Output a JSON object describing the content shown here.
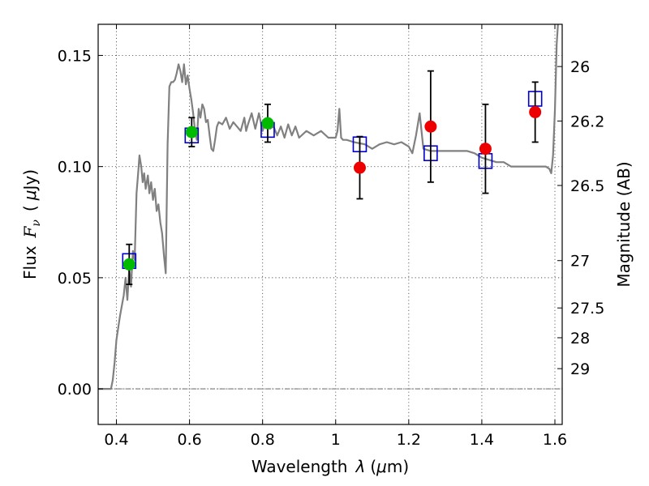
{
  "chart_data": {
    "type": "scatter",
    "xlabel_prefix": "Wavelength",
    "xlabel_symbol": "λ",
    "xlabel_unit_prefix": "(",
    "xlabel_unit_symbol": "μ",
    "xlabel_unit_suffix": "m)",
    "ylabel_prefix": "Flux",
    "ylabel_symbol": "F",
    "ylabel_subscript": "ν",
    "ylabel_unit_open": "(",
    "ylabel_unit_symbol": "μ",
    "ylabel_unit_close": "Jy)",
    "y2label": "Magnitude (AB)",
    "xlim": [
      0.35,
      1.62
    ],
    "ylim": [
      -0.016,
      0.164
    ],
    "grid": true,
    "xticks": [
      0.4,
      0.6,
      0.8,
      1.0,
      1.2,
      1.4,
      1.6
    ],
    "xtick_labels": [
      "0.4",
      "0.6",
      "0.8",
      "1",
      "1.2",
      "1.4",
      "1.6"
    ],
    "yticks": [
      0.0,
      0.05,
      0.1,
      0.15
    ],
    "ytick_labels": [
      "0.00",
      "0.05",
      "0.10",
      "0.15"
    ],
    "mag_ticks": [
      {
        "label": "26",
        "flux": 0.145
      },
      {
        "label": "26.2",
        "flux": 0.1205
      },
      {
        "label": "26.5",
        "flux": 0.0915
      },
      {
        "label": "27",
        "flux": 0.0577
      },
      {
        "label": "27.5",
        "flux": 0.0364
      },
      {
        "label": "28",
        "flux": 0.023
      },
      {
        "label": "29",
        "flux": 0.0091
      }
    ],
    "colors": {
      "model": "#808080",
      "green": "#00bb00",
      "red": "#ee0000",
      "box": "#0000cc",
      "errorbar": "#000000",
      "zero_line": "#555555"
    },
    "series": [
      {
        "points": [
          {
            "x": 0.435,
            "y": 0.056,
            "err": 0.009
          },
          {
            "x": 0.606,
            "y": 0.1155,
            "err": 0.0065
          },
          {
            "x": 0.814,
            "y": 0.1195,
            "err": 0.0085
          }
        ]
      },
      {
        "points": [
          {
            "x": 1.066,
            "y": 0.0995,
            "err": 0.014
          },
          {
            "x": 1.26,
            "y": 0.118,
            "err": 0.025
          },
          {
            "x": 1.41,
            "y": 0.108,
            "err": 0.02
          },
          {
            "x": 1.546,
            "y": 0.1245,
            "err": 0.0135
          }
        ]
      },
      {
        "points": [
          {
            "x": 0.435,
            "y": 0.0575
          },
          {
            "x": 0.606,
            "y": 0.114
          },
          {
            "x": 0.814,
            "y": 0.1165
          },
          {
            "x": 1.066,
            "y": 0.11
          },
          {
            "x": 1.26,
            "y": 0.106
          },
          {
            "x": 1.41,
            "y": 0.1025
          },
          {
            "x": 1.546,
            "y": 0.1305
          }
        ]
      },
      {
        "points": [
          [
            0.35,
            0.0
          ],
          [
            0.385,
            0.0
          ],
          [
            0.39,
            0.004
          ],
          [
            0.395,
            0.012
          ],
          [
            0.4,
            0.022
          ],
          [
            0.41,
            0.033
          ],
          [
            0.42,
            0.042
          ],
          [
            0.425,
            0.05
          ],
          [
            0.43,
            0.04
          ],
          [
            0.435,
            0.054
          ],
          [
            0.44,
            0.046
          ],
          [
            0.445,
            0.062
          ],
          [
            0.45,
            0.058
          ],
          [
            0.455,
            0.088
          ],
          [
            0.46,
            0.098
          ],
          [
            0.463,
            0.105
          ],
          [
            0.468,
            0.1
          ],
          [
            0.472,
            0.093
          ],
          [
            0.476,
            0.097
          ],
          [
            0.48,
            0.09
          ],
          [
            0.486,
            0.096
          ],
          [
            0.49,
            0.088
          ],
          [
            0.495,
            0.093
          ],
          [
            0.5,
            0.085
          ],
          [
            0.505,
            0.09
          ],
          [
            0.51,
            0.08
          ],
          [
            0.515,
            0.083
          ],
          [
            0.52,
            0.075
          ],
          [
            0.525,
            0.07
          ],
          [
            0.53,
            0.06
          ],
          [
            0.535,
            0.052
          ],
          [
            0.54,
            0.11
          ],
          [
            0.545,
            0.136
          ],
          [
            0.55,
            0.138
          ],
          [
            0.555,
            0.138
          ],
          [
            0.56,
            0.139
          ],
          [
            0.565,
            0.142
          ],
          [
            0.57,
            0.146
          ],
          [
            0.575,
            0.143
          ],
          [
            0.58,
            0.138
          ],
          [
            0.585,
            0.146
          ],
          [
            0.59,
            0.137
          ],
          [
            0.595,
            0.141
          ],
          [
            0.6,
            0.135
          ],
          [
            0.605,
            0.13
          ],
          [
            0.61,
            0.124
          ],
          [
            0.615,
            0.116
          ],
          [
            0.62,
            0.112
          ],
          [
            0.625,
            0.126
          ],
          [
            0.63,
            0.122
          ],
          [
            0.635,
            0.128
          ],
          [
            0.64,
            0.126
          ],
          [
            0.645,
            0.12
          ],
          [
            0.65,
            0.121
          ],
          [
            0.655,
            0.114
          ],
          [
            0.66,
            0.108
          ],
          [
            0.665,
            0.107
          ],
          [
            0.67,
            0.112
          ],
          [
            0.675,
            0.118
          ],
          [
            0.68,
            0.12
          ],
          [
            0.69,
            0.119
          ],
          [
            0.7,
            0.122
          ],
          [
            0.71,
            0.117
          ],
          [
            0.72,
            0.12
          ],
          [
            0.73,
            0.118
          ],
          [
            0.74,
            0.116
          ],
          [
            0.75,
            0.122
          ],
          [
            0.755,
            0.116
          ],
          [
            0.76,
            0.119
          ],
          [
            0.77,
            0.124
          ],
          [
            0.78,
            0.117
          ],
          [
            0.79,
            0.124
          ],
          [
            0.8,
            0.116
          ],
          [
            0.81,
            0.121
          ],
          [
            0.82,
            0.117
          ],
          [
            0.83,
            0.118
          ],
          [
            0.84,
            0.114
          ],
          [
            0.85,
            0.118
          ],
          [
            0.86,
            0.113
          ],
          [
            0.87,
            0.119
          ],
          [
            0.88,
            0.114
          ],
          [
            0.89,
            0.118
          ],
          [
            0.9,
            0.113
          ],
          [
            0.92,
            0.116
          ],
          [
            0.94,
            0.114
          ],
          [
            0.96,
            0.116
          ],
          [
            0.98,
            0.113
          ],
          [
            1.0,
            0.113
          ],
          [
            1.005,
            0.116
          ],
          [
            1.01,
            0.126
          ],
          [
            1.015,
            0.113
          ],
          [
            1.02,
            0.112
          ],
          [
            1.03,
            0.112
          ],
          [
            1.05,
            0.111
          ],
          [
            1.08,
            0.11
          ],
          [
            1.1,
            0.108
          ],
          [
            1.12,
            0.11
          ],
          [
            1.14,
            0.111
          ],
          [
            1.16,
            0.11
          ],
          [
            1.18,
            0.111
          ],
          [
            1.2,
            0.109
          ],
          [
            1.21,
            0.106
          ],
          [
            1.22,
            0.114
          ],
          [
            1.23,
            0.124
          ],
          [
            1.24,
            0.108
          ],
          [
            1.26,
            0.107
          ],
          [
            1.28,
            0.107
          ],
          [
            1.3,
            0.107
          ],
          [
            1.32,
            0.107
          ],
          [
            1.34,
            0.107
          ],
          [
            1.36,
            0.107
          ],
          [
            1.38,
            0.106
          ],
          [
            1.4,
            0.104
          ],
          [
            1.42,
            0.103
          ],
          [
            1.44,
            0.102
          ],
          [
            1.46,
            0.102
          ],
          [
            1.48,
            0.1
          ],
          [
            1.5,
            0.1
          ],
          [
            1.52,
            0.1
          ],
          [
            1.54,
            0.1
          ],
          [
            1.56,
            0.1
          ],
          [
            1.575,
            0.1
          ],
          [
            1.585,
            0.099
          ],
          [
            1.59,
            0.097
          ],
          [
            1.595,
            0.105
          ],
          [
            1.6,
            0.125
          ],
          [
            1.605,
            0.155
          ],
          [
            1.61,
            0.168
          ]
        ]
      }
    ]
  }
}
